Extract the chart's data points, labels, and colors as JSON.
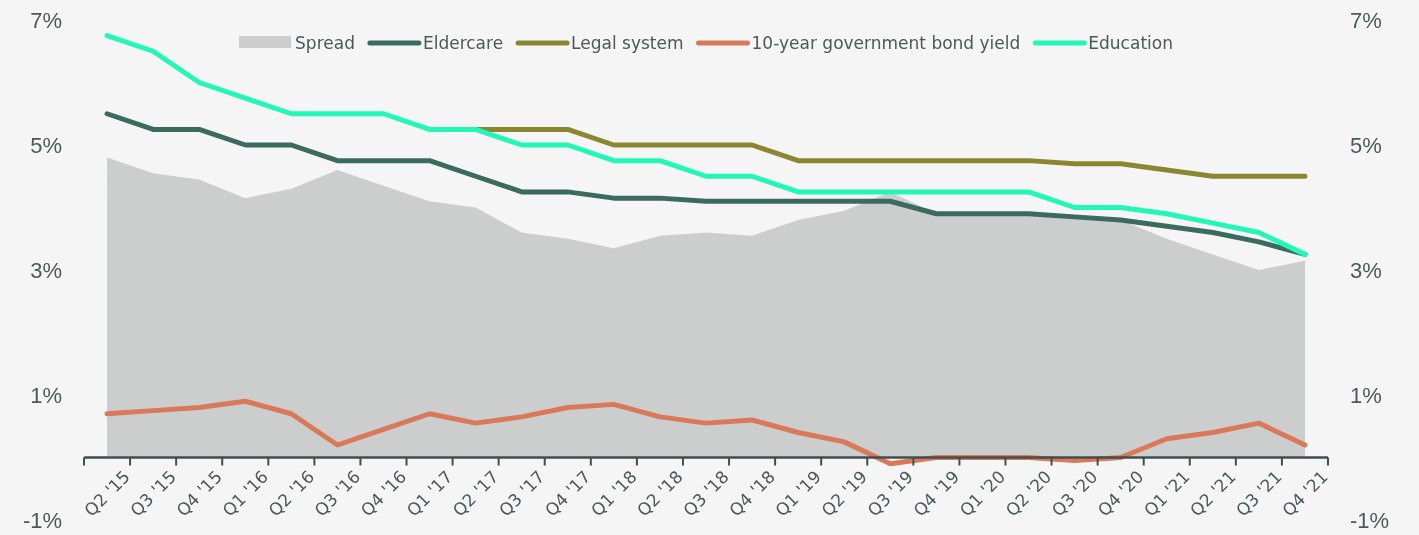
{
  "chart_data": {
    "type": "line",
    "categories": [
      "Q2 '15",
      "Q3 '15",
      "Q4 '15",
      "Q1 '16",
      "Q2 '16",
      "Q3 '16",
      "Q4 '16",
      "Q1 '17",
      "Q2 '17",
      "Q3 '17",
      "Q4 '17",
      "Q1 '18",
      "Q2 '18",
      "Q3 '18",
      "Q4 '18",
      "Q1 '19",
      "Q2 '19",
      "Q3 '19",
      "Q4 '19",
      "Q1 '20",
      "Q2 '20",
      "Q3 '20",
      "Q4 '20",
      "Q1 '21",
      "Q2 '21",
      "Q3 '21",
      "Q4 '21"
    ],
    "series": [
      {
        "name": "Spread",
        "type": "area",
        "color": "#cccecd",
        "values": [
          4.8,
          4.55,
          4.45,
          4.15,
          4.3,
          4.6,
          4.35,
          4.1,
          4.0,
          3.6,
          3.5,
          3.35,
          3.55,
          3.6,
          3.55,
          3.8,
          3.95,
          4.25,
          3.9,
          3.9,
          3.9,
          3.85,
          3.8,
          3.5,
          3.25,
          3.0,
          3.15
        ]
      },
      {
        "name": "Eldercare",
        "color": "#3b6b5e",
        "values": [
          5.5,
          5.25,
          5.25,
          5.0,
          5.0,
          4.75,
          4.75,
          4.75,
          4.5,
          4.25,
          4.25,
          4.15,
          4.15,
          4.1,
          4.1,
          4.1,
          4.1,
          4.1,
          3.9,
          3.9,
          3.9,
          3.85,
          3.8,
          3.7,
          3.6,
          3.45,
          3.25
        ]
      },
      {
        "name": "Legal system",
        "color": "#8b8730",
        "values": [
          null,
          null,
          null,
          null,
          null,
          null,
          null,
          null,
          5.25,
          5.25,
          5.25,
          5.0,
          5.0,
          5.0,
          5.0,
          4.75,
          4.75,
          4.75,
          4.75,
          4.75,
          4.75,
          4.7,
          4.7,
          4.6,
          4.5,
          4.5,
          4.5
        ]
      },
      {
        "name": "10-year government bond yield",
        "color": "#d9795a",
        "values": [
          0.7,
          0.75,
          0.8,
          0.9,
          0.7,
          0.2,
          0.45,
          0.7,
          0.55,
          0.65,
          0.8,
          0.85,
          0.65,
          0.55,
          0.6,
          0.4,
          0.25,
          -0.1,
          0.0,
          0.0,
          0.0,
          -0.05,
          0.0,
          0.3,
          0.4,
          0.55,
          0.2
        ]
      },
      {
        "name": "Education",
        "color": "#22f7b8",
        "values": [
          6.75,
          6.5,
          6.0,
          5.75,
          5.5,
          5.5,
          5.5,
          5.25,
          5.25,
          5.0,
          5.0,
          4.75,
          4.75,
          4.5,
          4.5,
          4.25,
          4.25,
          4.25,
          4.25,
          4.25,
          4.25,
          4.0,
          4.0,
          3.9,
          3.75,
          3.6,
          3.25
        ]
      }
    ],
    "ylim": [
      -1,
      7
    ],
    "yticks": [
      {
        "value": 7,
        "label": "7%"
      },
      {
        "value": 5,
        "label": "5%"
      },
      {
        "value": 3,
        "label": "3%"
      },
      {
        "value": 1,
        "label": "1%"
      },
      {
        "value": -1,
        "label": "-1%"
      }
    ],
    "y2lim": [
      -1,
      7
    ],
    "y2ticks": [
      {
        "value": 7,
        "label": "7%"
      },
      {
        "value": 5,
        "label": "5%"
      },
      {
        "value": 3,
        "label": "3%"
      },
      {
        "value": 1,
        "label": "1%"
      },
      {
        "value": -1,
        "label": "-1%"
      }
    ],
    "grid": false,
    "legend": "top",
    "marker": "none",
    "line_style": "solid"
  }
}
